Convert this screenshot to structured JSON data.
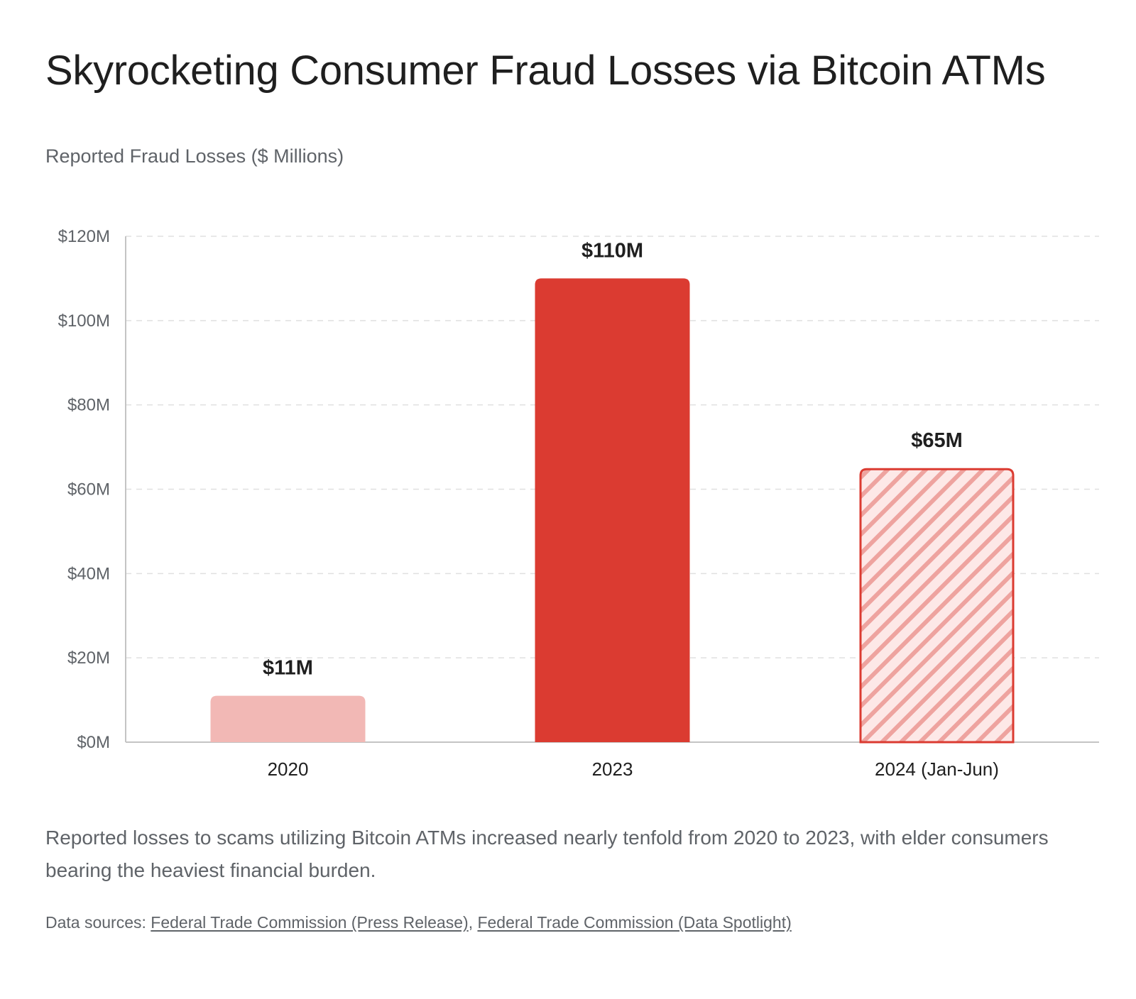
{
  "title": "Skyrocketing Consumer Fraud Losses via Bitcoin ATMs",
  "subtitle": "Reported Fraud Losses ($ Millions)",
  "description": "Reported losses to scams utilizing Bitcoin ATMs increased nearly tenfold from 2020 to 2023, with elder consumers bearing the heaviest financial burden.",
  "sources": {
    "prefix": "Data sources: ",
    "links": [
      {
        "label": "Federal Trade Commission (Press Release)"
      },
      {
        "label": "Federal Trade Commission (Data Spotlight)"
      }
    ],
    "separator": ", "
  },
  "colors": {
    "bar_2020": "#f2b8b5",
    "bar_2023": "#db3b31",
    "bar_2024_fill": "#fde8e7",
    "bar_2024_stripe": "#eea39f",
    "bar_2024_border": "#db3b31",
    "grid": "#e0e0e0",
    "axis": "#c4c4c4"
  },
  "chart_data": {
    "type": "bar",
    "categories": [
      "2020",
      "2023",
      "2024 (Jan-Jun)"
    ],
    "values": [
      11,
      110,
      65
    ],
    "data_labels": [
      "$11M",
      "$110M",
      "$65M"
    ],
    "bar_styles": [
      "light",
      "solid",
      "hatched"
    ],
    "y_ticks": [
      0,
      20,
      40,
      60,
      80,
      100,
      120
    ],
    "y_tick_labels": [
      "$0M",
      "$20M",
      "$40M",
      "$60M",
      "$80M",
      "$100M",
      "$120M"
    ],
    "ylim": [
      0,
      120
    ],
    "grid": true,
    "legend": "none"
  }
}
